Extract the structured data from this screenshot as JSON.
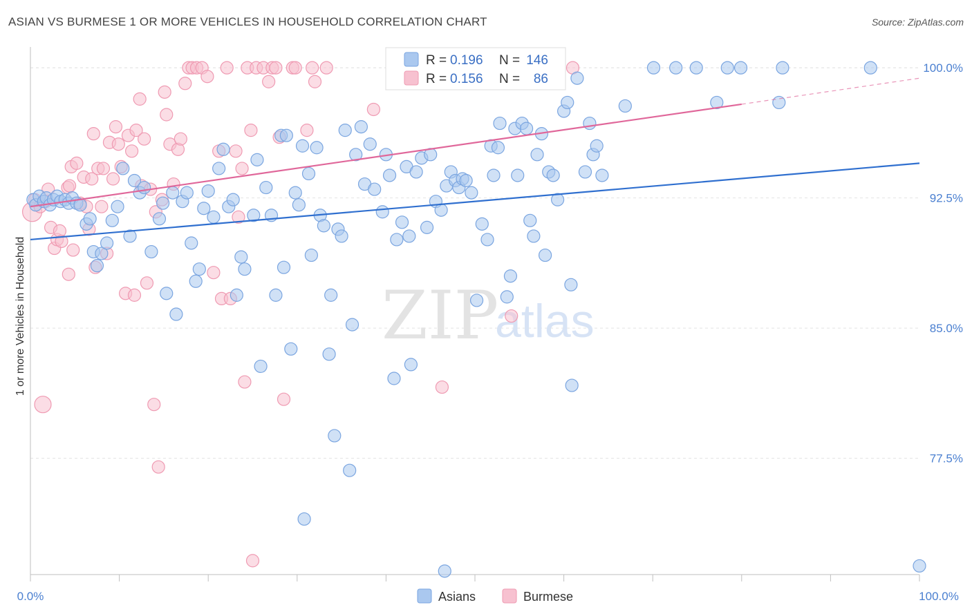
{
  "title": "ASIAN VS BURMESE 1 OR MORE VEHICLES IN HOUSEHOLD CORRELATION CHART",
  "source": "Source: ZipAtlas.com",
  "watermark": {
    "zip": "ZIP",
    "atlas": "atlas"
  },
  "stats": {
    "r_label": "R =",
    "n_label": "N =",
    "asians": {
      "r": "0.196",
      "n": "146"
    },
    "burmese": {
      "r": "0.156",
      "n": "86"
    }
  },
  "legend": {
    "asians": "Asians",
    "burmese": "Burmese"
  },
  "colors": {
    "asians_fill": "#aac8ef",
    "asians_stroke": "#7aa5e0",
    "asians_line": "#2f6fcf",
    "burmese_fill": "#f7c1d0",
    "burmese_stroke": "#ef9ab2",
    "burmese_line": "#e0679a"
  },
  "chart_data": {
    "type": "scatter",
    "title": "ASIAN VS BURMESE 1 OR MORE VEHICLES IN HOUSEHOLD CORRELATION CHART",
    "xlabel": "",
    "ylabel": "1 or more Vehicles in Household",
    "xlim": [
      0,
      100
    ],
    "ylim": [
      70.8,
      101.2
    ],
    "y_ticks": [
      77.5,
      85.0,
      92.5,
      100.0
    ],
    "y_tick_labels": [
      "77.5%",
      "85.0%",
      "92.5%",
      "100.0%"
    ],
    "x_tick_labels": [
      "0.0%",
      "100.0%"
    ],
    "grid": true,
    "series": [
      {
        "name": "Asians",
        "trend": {
          "x0": 0,
          "y0": 90.1,
          "x1": 100,
          "y1": 94.5
        },
        "points": [
          [
            0.3,
            92.4
          ],
          [
            0.6,
            92.1
          ],
          [
            1.0,
            92.6
          ],
          [
            1.5,
            92.3
          ],
          [
            1.8,
            92.5
          ],
          [
            2.2,
            92.1
          ],
          [
            2.6,
            92.4
          ],
          [
            3.0,
            92.6
          ],
          [
            3.4,
            92.3
          ],
          [
            3.9,
            92.4
          ],
          [
            4.3,
            92.2
          ],
          [
            4.7,
            92.5
          ],
          [
            5.2,
            92.2
          ],
          [
            5.6,
            92.1
          ],
          [
            6.3,
            91.0
          ],
          [
            6.7,
            91.3
          ],
          [
            7.1,
            89.4
          ],
          [
            7.5,
            88.6
          ],
          [
            8.0,
            89.3
          ],
          [
            8.6,
            89.9
          ],
          [
            9.2,
            91.2
          ],
          [
            9.8,
            92.0
          ],
          [
            10.4,
            94.2
          ],
          [
            11.2,
            90.3
          ],
          [
            11.7,
            93.5
          ],
          [
            12.3,
            92.8
          ],
          [
            12.8,
            93.1
          ],
          [
            13.6,
            89.4
          ],
          [
            14.5,
            91.3
          ],
          [
            14.9,
            92.2
          ],
          [
            15.3,
            87.0
          ],
          [
            16.0,
            92.8
          ],
          [
            16.4,
            85.8
          ],
          [
            17.1,
            92.3
          ],
          [
            17.6,
            92.8
          ],
          [
            18.1,
            89.9
          ],
          [
            18.6,
            87.7
          ],
          [
            19.0,
            88.4
          ],
          [
            19.5,
            91.9
          ],
          [
            20.0,
            92.9
          ],
          [
            20.6,
            91.4
          ],
          [
            21.2,
            94.2
          ],
          [
            21.7,
            95.3
          ],
          [
            22.3,
            92.0
          ],
          [
            22.8,
            92.4
          ],
          [
            23.2,
            86.9
          ],
          [
            23.7,
            89.1
          ],
          [
            24.1,
            88.4
          ],
          [
            25.1,
            91.5
          ],
          [
            25.5,
            94.7
          ],
          [
            25.9,
            82.8
          ],
          [
            26.5,
            93.1
          ],
          [
            27.1,
            91.5
          ],
          [
            27.6,
            86.9
          ],
          [
            28.2,
            96.1
          ],
          [
            28.5,
            88.5
          ],
          [
            28.8,
            96.1
          ],
          [
            29.3,
            83.8
          ],
          [
            29.8,
            92.8
          ],
          [
            30.2,
            92.1
          ],
          [
            30.6,
            95.5
          ],
          [
            30.8,
            74.0
          ],
          [
            31.3,
            93.9
          ],
          [
            31.6,
            89.2
          ],
          [
            32.2,
            95.4
          ],
          [
            32.6,
            91.5
          ],
          [
            33.0,
            90.9
          ],
          [
            33.6,
            83.5
          ],
          [
            33.8,
            86.9
          ],
          [
            34.2,
            78.8
          ],
          [
            34.6,
            90.7
          ],
          [
            35.0,
            90.3
          ],
          [
            35.4,
            96.4
          ],
          [
            35.9,
            76.8
          ],
          [
            36.2,
            85.2
          ],
          [
            36.6,
            95.0
          ],
          [
            37.2,
            96.6
          ],
          [
            37.6,
            93.3
          ],
          [
            38.2,
            95.6
          ],
          [
            38.7,
            93.0
          ],
          [
            39.6,
            91.7
          ],
          [
            40.0,
            95.0
          ],
          [
            40.4,
            93.8
          ],
          [
            40.9,
            82.1
          ],
          [
            41.2,
            90.1
          ],
          [
            41.8,
            91.1
          ],
          [
            42.3,
            94.3
          ],
          [
            42.6,
            90.3
          ],
          [
            42.8,
            82.9
          ],
          [
            43.4,
            94.0
          ],
          [
            44.0,
            94.8
          ],
          [
            44.6,
            90.8
          ],
          [
            45.0,
            95.0
          ],
          [
            45.6,
            92.3
          ],
          [
            46.2,
            91.8
          ],
          [
            46.6,
            71.0
          ],
          [
            46.8,
            93.2
          ],
          [
            47.3,
            94.0
          ],
          [
            47.8,
            93.5
          ],
          [
            48.2,
            93.1
          ],
          [
            48.6,
            93.6
          ],
          [
            49.0,
            93.5
          ],
          [
            49.6,
            92.8
          ],
          [
            50.2,
            86.6
          ],
          [
            50.8,
            91.0
          ],
          [
            51.4,
            90.1
          ],
          [
            51.8,
            95.5
          ],
          [
            52.1,
            93.8
          ],
          [
            52.6,
            95.4
          ],
          [
            52.8,
            96.8
          ],
          [
            53.6,
            86.8
          ],
          [
            54.0,
            88.0
          ],
          [
            54.5,
            96.5
          ],
          [
            54.8,
            93.8
          ],
          [
            55.3,
            96.8
          ],
          [
            55.8,
            96.5
          ],
          [
            56.2,
            91.2
          ],
          [
            56.6,
            90.3
          ],
          [
            57.0,
            95.0
          ],
          [
            57.5,
            96.2
          ],
          [
            57.9,
            89.2
          ],
          [
            58.3,
            94.0
          ],
          [
            58.8,
            93.8
          ],
          [
            59.3,
            92.4
          ],
          [
            60.0,
            97.5
          ],
          [
            60.4,
            98.0
          ],
          [
            60.8,
            87.5
          ],
          [
            60.9,
            81.7
          ],
          [
            61.5,
            99.4
          ],
          [
            62.4,
            94.0
          ],
          [
            62.9,
            96.8
          ],
          [
            63.3,
            95.0
          ],
          [
            63.7,
            95.5
          ],
          [
            64.3,
            93.8
          ],
          [
            66.9,
            97.8
          ],
          [
            70.1,
            100.0
          ],
          [
            72.6,
            100.0
          ],
          [
            74.9,
            100.0
          ],
          [
            77.2,
            98.0
          ],
          [
            78.4,
            100.0
          ],
          [
            79.9,
            100.0
          ],
          [
            84.6,
            100.0
          ],
          [
            84.2,
            98.0
          ],
          [
            100.0,
            71.3
          ],
          [
            94.5,
            100.0
          ]
        ]
      },
      {
        "name": "Burmese",
        "trend": {
          "x0": 0,
          "y0": 92.0,
          "x1": 80,
          "y1": 97.9,
          "dash_to": {
            "x": 100,
            "y": 99.4
          }
        },
        "points": [
          [
            0.2,
            91.7
          ],
          [
            0.5,
            92.4
          ],
          [
            1.1,
            92.0
          ],
          [
            1.4,
            80.6
          ],
          [
            1.7,
            92.3
          ],
          [
            2.0,
            93.0
          ],
          [
            2.3,
            90.8
          ],
          [
            2.7,
            89.6
          ],
          [
            3.0,
            90.1
          ],
          [
            3.3,
            90.6
          ],
          [
            3.5,
            90.0
          ],
          [
            4.2,
            93.1
          ],
          [
            4.3,
            88.1
          ],
          [
            4.4,
            93.2
          ],
          [
            4.6,
            94.3
          ],
          [
            4.8,
            89.5
          ],
          [
            5.2,
            94.5
          ],
          [
            5.6,
            92.2
          ],
          [
            6.0,
            93.7
          ],
          [
            6.3,
            92.0
          ],
          [
            6.6,
            90.7
          ],
          [
            6.9,
            93.6
          ],
          [
            7.1,
            96.2
          ],
          [
            7.3,
            88.5
          ],
          [
            7.6,
            94.2
          ],
          [
            8.0,
            92.0
          ],
          [
            8.2,
            94.2
          ],
          [
            8.6,
            89.3
          ],
          [
            8.9,
            95.7
          ],
          [
            9.3,
            93.6
          ],
          [
            9.6,
            96.6
          ],
          [
            9.9,
            95.6
          ],
          [
            10.2,
            94.3
          ],
          [
            10.7,
            87.0
          ],
          [
            11.0,
            96.1
          ],
          [
            11.4,
            95.2
          ],
          [
            11.7,
            86.9
          ],
          [
            11.9,
            96.4
          ],
          [
            12.3,
            98.2
          ],
          [
            12.5,
            93.2
          ],
          [
            12.8,
            95.9
          ],
          [
            13.1,
            87.6
          ],
          [
            13.5,
            93.0
          ],
          [
            13.9,
            80.6
          ],
          [
            14.1,
            91.7
          ],
          [
            14.4,
            77.0
          ],
          [
            14.8,
            92.4
          ],
          [
            15.1,
            98.6
          ],
          [
            15.3,
            97.3
          ],
          [
            15.7,
            95.6
          ],
          [
            16.1,
            93.3
          ],
          [
            16.6,
            95.3
          ],
          [
            16.9,
            95.9
          ],
          [
            17.4,
            99.1
          ],
          [
            17.8,
            100.0
          ],
          [
            18.2,
            100.0
          ],
          [
            18.7,
            100.0
          ],
          [
            19.3,
            100.0
          ],
          [
            19.9,
            99.5
          ],
          [
            20.6,
            88.2
          ],
          [
            21.2,
            95.2
          ],
          [
            21.5,
            86.7
          ],
          [
            22.1,
            100.0
          ],
          [
            22.5,
            86.7
          ],
          [
            23.1,
            95.2
          ],
          [
            23.4,
            91.4
          ],
          [
            23.8,
            94.2
          ],
          [
            24.1,
            81.9
          ],
          [
            24.4,
            100.0
          ],
          [
            24.8,
            96.4
          ],
          [
            25.0,
            71.6
          ],
          [
            25.4,
            100.0
          ],
          [
            26.2,
            100.0
          ],
          [
            26.8,
            99.2
          ],
          [
            27.2,
            100.0
          ],
          [
            27.6,
            100.0
          ],
          [
            28.0,
            96.0
          ],
          [
            28.5,
            80.9
          ],
          [
            29.5,
            100.0
          ],
          [
            29.8,
            100.0
          ],
          [
            31.1,
            96.4
          ],
          [
            31.7,
            100.0
          ],
          [
            32.0,
            99.2
          ],
          [
            33.3,
            100.0
          ],
          [
            38.6,
            97.6
          ],
          [
            46.3,
            81.6
          ],
          [
            54.1,
            85.7
          ],
          [
            61.0,
            100.0
          ]
        ]
      }
    ]
  }
}
